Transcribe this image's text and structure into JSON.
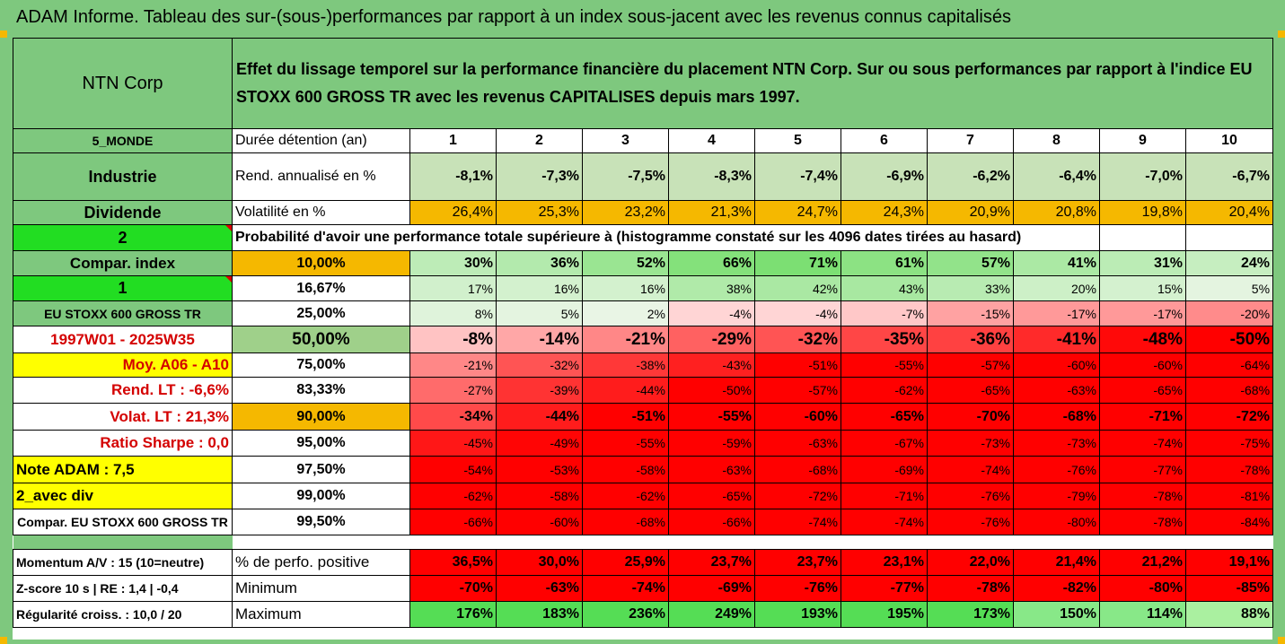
{
  "banner": {
    "title": "ADAM Informe. Tableau des sur-(sous-)performances par rapport à un index sous-jacent avec les revenus connus capitalisés"
  },
  "colors": {
    "green": "#7ec87e",
    "orange": "#f5b800",
    "yellow": "#ffff00",
    "bright_green": "#22dd22",
    "red": "#ff0000"
  },
  "header": {
    "company": "NTN Corp",
    "description": "Effet du lissage temporel sur la performance financière du placement NTN Corp. Sur ou sous performances par rapport à l'indice EU STOXX 600 GROSS TR avec les revenus CAPITALISES depuis mars 1997.",
    "desc_line1": "Effet du lissage temporel sur la performance financière du placement NTN Corp. Sur ou sous performances par rapport à l'indice EU",
    "desc_line2": "STOXX 600 GROSS TR avec les revenus CAPITALISES depuis mars 1997."
  },
  "left": {
    "region": "5_MONDE",
    "sector": "Industrie",
    "type": "Dividende",
    "n2": "2",
    "compar": "Compar. index",
    "n1": "1",
    "index": "EU STOXX 600 GROSS TR",
    "period": "1997W01 - 2025W35",
    "moy": "Moy. A06 - A10",
    "rend": "Rend. LT :   -6,6%",
    "volat": "Volat. LT :   21,3%",
    "sharpe": "Ratio Sharpe :   0,0",
    "note": "Note ADAM : 7,5",
    "div": "2_avec div",
    "compar2": "Compar. EU STOXX 600 GROSS TR"
  },
  "years_label": "Durée détention (an)",
  "years": [
    "1",
    "2",
    "3",
    "4",
    "5",
    "6",
    "7",
    "8",
    "9",
    "10"
  ],
  "rend_label": "Rend. annualisé en %",
  "rend": [
    "-8,1%",
    "-7,3%",
    "-7,5%",
    "-8,3%",
    "-7,4%",
    "-6,9%",
    "-6,2%",
    "-6,4%",
    "-7,0%",
    "-6,7%"
  ],
  "vol_label": "Volatilité en %",
  "vol": [
    "26,4%",
    "25,3%",
    "23,2%",
    "21,3%",
    "24,7%",
    "24,3%",
    "20,9%",
    "20,8%",
    "19,8%",
    "20,4%"
  ],
  "prob_title": "Probabilité d'avoir une performance totale supérieure à (histogramme constaté sur les 4096 dates tirées au hasard)",
  "prob_rows": [
    {
      "p": "10,00%",
      "v": [
        "30%",
        "36%",
        "52%",
        "66%",
        "71%",
        "61%",
        "57%",
        "41%",
        "31%",
        "24%"
      ]
    },
    {
      "p": "16,67%",
      "v": [
        "17%",
        "16%",
        "16%",
        "38%",
        "42%",
        "43%",
        "33%",
        "20%",
        "15%",
        "5%"
      ]
    },
    {
      "p": "25,00%",
      "v": [
        "8%",
        "5%",
        "2%",
        "-4%",
        "-4%",
        "-7%",
        "-15%",
        "-17%",
        "-17%",
        "-20%"
      ]
    },
    {
      "p": "50,00%",
      "v": [
        "-8%",
        "-14%",
        "-21%",
        "-29%",
        "-32%",
        "-35%",
        "-36%",
        "-41%",
        "-48%",
        "-50%"
      ]
    },
    {
      "p": "75,00%",
      "v": [
        "-21%",
        "-32%",
        "-38%",
        "-43%",
        "-51%",
        "-55%",
        "-57%",
        "-60%",
        "-60%",
        "-64%"
      ]
    },
    {
      "p": "83,33%",
      "v": [
        "-27%",
        "-39%",
        "-44%",
        "-50%",
        "-57%",
        "-62%",
        "-65%",
        "-63%",
        "-65%",
        "-68%"
      ]
    },
    {
      "p": "90,00%",
      "v": [
        "-34%",
        "-44%",
        "-51%",
        "-55%",
        "-60%",
        "-65%",
        "-70%",
        "-68%",
        "-71%",
        "-72%"
      ]
    },
    {
      "p": "95,00%",
      "v": [
        "-45%",
        "-49%",
        "-55%",
        "-59%",
        "-63%",
        "-67%",
        "-73%",
        "-73%",
        "-74%",
        "-75%"
      ]
    },
    {
      "p": "97,50%",
      "v": [
        "-54%",
        "-53%",
        "-58%",
        "-63%",
        "-68%",
        "-69%",
        "-74%",
        "-76%",
        "-77%",
        "-78%"
      ]
    },
    {
      "p": "99,00%",
      "v": [
        "-62%",
        "-58%",
        "-62%",
        "-65%",
        "-72%",
        "-71%",
        "-76%",
        "-79%",
        "-78%",
        "-81%"
      ]
    },
    {
      "p": "99,50%",
      "v": [
        "-66%",
        "-60%",
        "-68%",
        "-66%",
        "-74%",
        "-74%",
        "-76%",
        "-80%",
        "-78%",
        "-84%"
      ]
    }
  ],
  "bottom": {
    "momentum": "Momentum A/V : 15 (10=neutre)",
    "zscore": "Z-score 10 s  |  RE : 1,4  |  -0,4",
    "regul": "Régularité croiss. : 10,0 / 20",
    "pos_label": "% de perfo. positive",
    "pos": [
      "36,5%",
      "30,0%",
      "25,9%",
      "23,7%",
      "23,7%",
      "23,1%",
      "22,0%",
      "21,4%",
      "21,2%",
      "19,1%"
    ],
    "min_label": "Minimum",
    "min": [
      "-70%",
      "-63%",
      "-74%",
      "-69%",
      "-76%",
      "-77%",
      "-78%",
      "-82%",
      "-80%",
      "-85%"
    ],
    "max_label": "Maximum",
    "max": [
      "176%",
      "183%",
      "236%",
      "249%",
      "193%",
      "195%",
      "173%",
      "150%",
      "114%",
      "88%"
    ]
  }
}
